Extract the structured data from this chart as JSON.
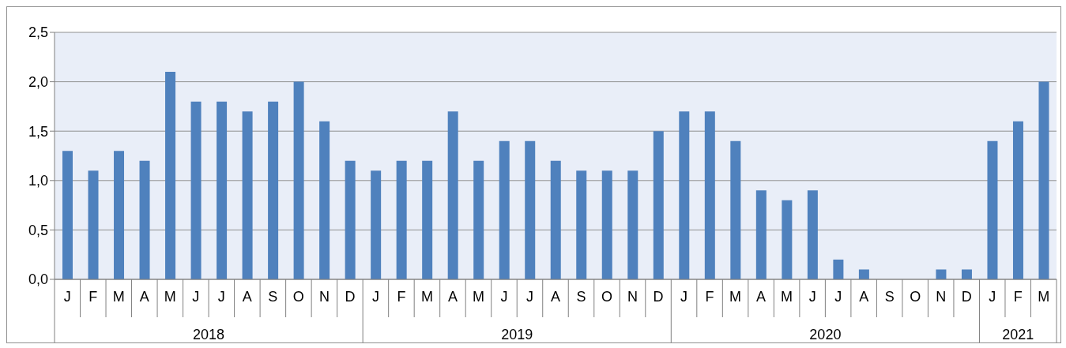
{
  "chart_data": {
    "type": "bar",
    "categories": [
      "J",
      "F",
      "M",
      "A",
      "M",
      "J",
      "J",
      "A",
      "S",
      "O",
      "N",
      "D",
      "J",
      "F",
      "M",
      "A",
      "M",
      "J",
      "J",
      "A",
      "S",
      "O",
      "N",
      "D",
      "J",
      "F",
      "M",
      "A",
      "M",
      "J",
      "J",
      "A",
      "S",
      "O",
      "N",
      "D",
      "J",
      "F",
      "M"
    ],
    "values": [
      1.3,
      1.1,
      1.3,
      1.2,
      2.1,
      1.8,
      1.8,
      1.7,
      1.8,
      2.0,
      1.6,
      1.2,
      1.1,
      1.2,
      1.2,
      1.7,
      1.2,
      1.4,
      1.4,
      1.2,
      1.1,
      1.1,
      1.1,
      1.5,
      1.7,
      1.7,
      1.4,
      0.9,
      0.8,
      0.9,
      0.2,
      0.1,
      0,
      0,
      0.1,
      0.1,
      1.4,
      1.6,
      2.0
    ],
    "color": "#4f81bd",
    "ylim": [
      0,
      2.5
    ],
    "yticks": [
      {
        "value": 0,
        "label": "0,0"
      },
      {
        "value": 0.5,
        "label": "0,5"
      },
      {
        "value": 1,
        "label": "1,0"
      },
      {
        "value": 1.5,
        "label": "1,5"
      },
      {
        "value": 2,
        "label": "2,0"
      },
      {
        "value": 2.5,
        "label": "2,5"
      }
    ],
    "grid": "y",
    "legend": false,
    "annotations": [
      "2018",
      "2019",
      "2020",
      "2021"
    ]
  }
}
